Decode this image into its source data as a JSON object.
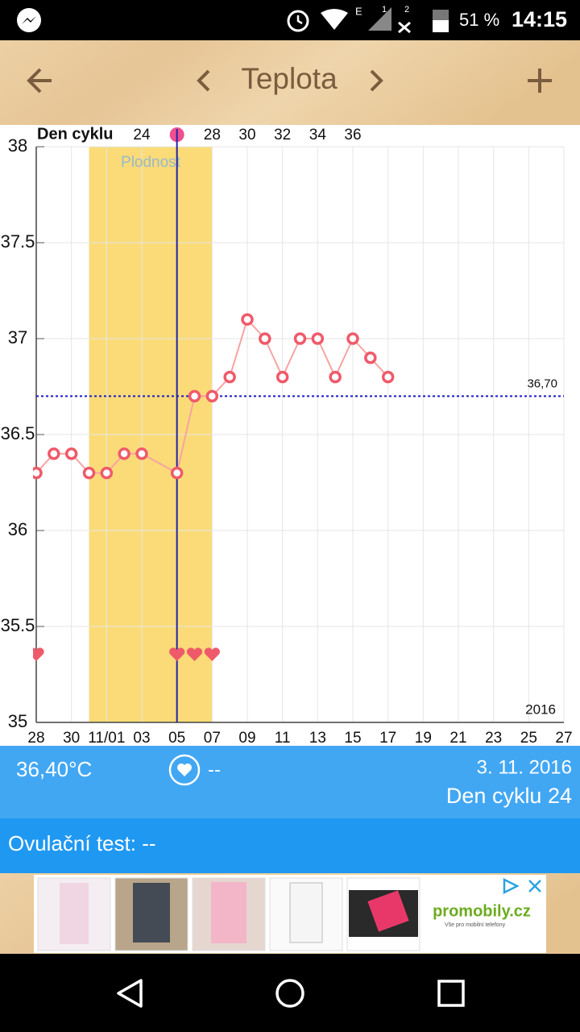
{
  "status_bar": {
    "network": "E",
    "sim1": "1",
    "sim2": "2",
    "battery": "51 %",
    "time": "14:15"
  },
  "toolbar": {
    "title": "Teplota"
  },
  "chart_data": {
    "type": "line",
    "x": [
      "2016-10-28",
      "2016-10-29",
      "2016-10-30",
      "2016-10-31",
      "2016-11-01",
      "2016-11-02",
      "2016-11-03",
      "2016-11-05",
      "2016-11-06",
      "2016-11-07",
      "2016-11-08",
      "2016-11-09",
      "2016-11-10",
      "2016-11-11",
      "2016-11-12",
      "2016-11-13",
      "2016-11-14",
      "2016-11-15",
      "2016-11-16",
      "2016-11-17"
    ],
    "values": [
      36.3,
      36.4,
      36.4,
      36.3,
      36.3,
      36.4,
      36.4,
      36.3,
      36.7,
      36.7,
      36.8,
      37.1,
      37.0,
      36.8,
      37.0,
      37.0,
      36.8,
      37.0,
      36.9,
      36.8
    ],
    "color": "#f7a3a3",
    "marker_color": "#ef5a6a",
    "xlim": [
      "2016-10-28",
      "2016-11-27"
    ],
    "xticks": [
      {
        "value": "2016-10-28",
        "label": "28"
      },
      {
        "value": "2016-10-30",
        "label": "30"
      },
      {
        "value": "2016-11-01",
        "label": "11/01"
      },
      {
        "value": "2016-11-03",
        "label": "03"
      },
      {
        "value": "2016-11-05",
        "label": "05"
      },
      {
        "value": "2016-11-07",
        "label": "07"
      },
      {
        "value": "2016-11-09",
        "label": "09"
      },
      {
        "value": "2016-11-11",
        "label": "11"
      },
      {
        "value": "2016-11-13",
        "label": "13"
      },
      {
        "value": "2016-11-15",
        "label": "15"
      },
      {
        "value": "2016-11-17",
        "label": "17"
      },
      {
        "value": "2016-11-19",
        "label": "19"
      },
      {
        "value": "2016-11-21",
        "label": "21"
      },
      {
        "value": "2016-11-23",
        "label": "23"
      },
      {
        "value": "2016-11-25",
        "label": "25"
      },
      {
        "value": "2016-11-27",
        "label": "27"
      }
    ],
    "ylim": [
      35,
      38
    ],
    "yticks": [
      35,
      35.5,
      36,
      36.5,
      37,
      37.5,
      38
    ],
    "grid": true,
    "year_label": "2016",
    "cycle_axis": {
      "label": "Den cyklu",
      "ticks": [
        {
          "value": "2016-11-03",
          "label": "24"
        },
        {
          "value": "2016-11-07",
          "label": "28"
        },
        {
          "value": "2016-11-09",
          "label": "30"
        },
        {
          "value": "2016-11-11",
          "label": "32"
        },
        {
          "value": "2016-11-13",
          "label": "34"
        },
        {
          "value": "2016-11-15",
          "label": "36"
        }
      ],
      "marker": "2016-11-05"
    },
    "fertile_window": {
      "label": "Plodnost",
      "start": "2016-10-31",
      "end": "2016-11-07",
      "color": "#fadb78"
    },
    "ovulation_line": "2016-11-05",
    "coverline": {
      "value": 36.7,
      "label": "36,70",
      "color": "#1a1ac8"
    },
    "intercourse": [
      "2016-10-28",
      "2016-11-05",
      "2016-11-06",
      "2016-11-07"
    ]
  },
  "info_panel": {
    "temperature": "36,40°C",
    "test_result": "--",
    "date": "3. 11. 2016",
    "cycle_day": "Den cyklu 24"
  },
  "ovulation_test": {
    "label": "Ovulační test:",
    "value": "--"
  },
  "ad": {
    "brand": "promobily.cz",
    "tagline": "Vše pro mobilní telefony"
  }
}
